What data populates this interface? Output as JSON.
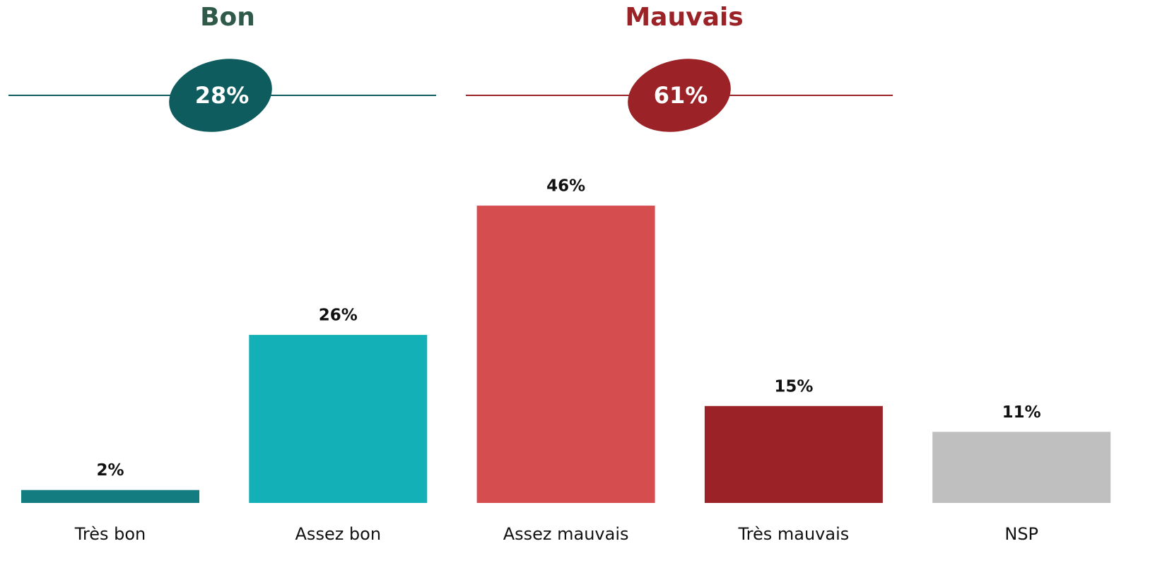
{
  "chart_data": {
    "type": "bar",
    "groups": [
      {
        "name": "Bon",
        "value": 28,
        "value_label": "28%",
        "color": "#0e5c5e",
        "title_color": "#2f5a4a"
      },
      {
        "name": "Mauvais",
        "value": 61,
        "value_label": "61%",
        "color": "#9b2226",
        "title_color": "#9b2226"
      }
    ],
    "categories": [
      "Très bon",
      "Assez bon",
      "Assez mauvais",
      "Très mauvais",
      "NSP"
    ],
    "values": [
      2,
      26,
      46,
      15,
      11
    ],
    "value_labels": [
      "2%",
      "26%",
      "46%",
      "15%",
      "11%"
    ],
    "colors": [
      "#127c80",
      "#13b0b8",
      "#d64d50",
      "#9b2226",
      "#bfbfbf"
    ]
  }
}
